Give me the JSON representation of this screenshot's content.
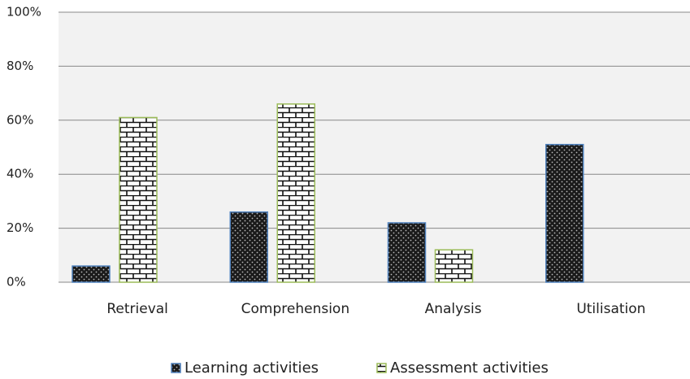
{
  "chart_data": {
    "type": "bar",
    "categories": [
      "Retrieval",
      "Comprehension",
      "Analysis",
      "Utilisation"
    ],
    "series": [
      {
        "name": "Learning activities",
        "color": "#4f81bd",
        "values": [
          6,
          26,
          22,
          51
        ]
      },
      {
        "name": "Assessment activities",
        "color": "#9bbb59",
        "values": [
          61,
          66,
          12,
          0
        ]
      }
    ],
    "ylim": [
      0,
      100
    ],
    "yticks": [
      {
        "value": 0,
        "label": "0%"
      },
      {
        "value": 20,
        "label": "20%"
      },
      {
        "value": 40,
        "label": "40%"
      },
      {
        "value": 60,
        "label": "60%"
      },
      {
        "value": 80,
        "label": "80%"
      },
      {
        "value": 100,
        "label": "100%"
      }
    ],
    "grid": true,
    "legend": "bottom"
  }
}
